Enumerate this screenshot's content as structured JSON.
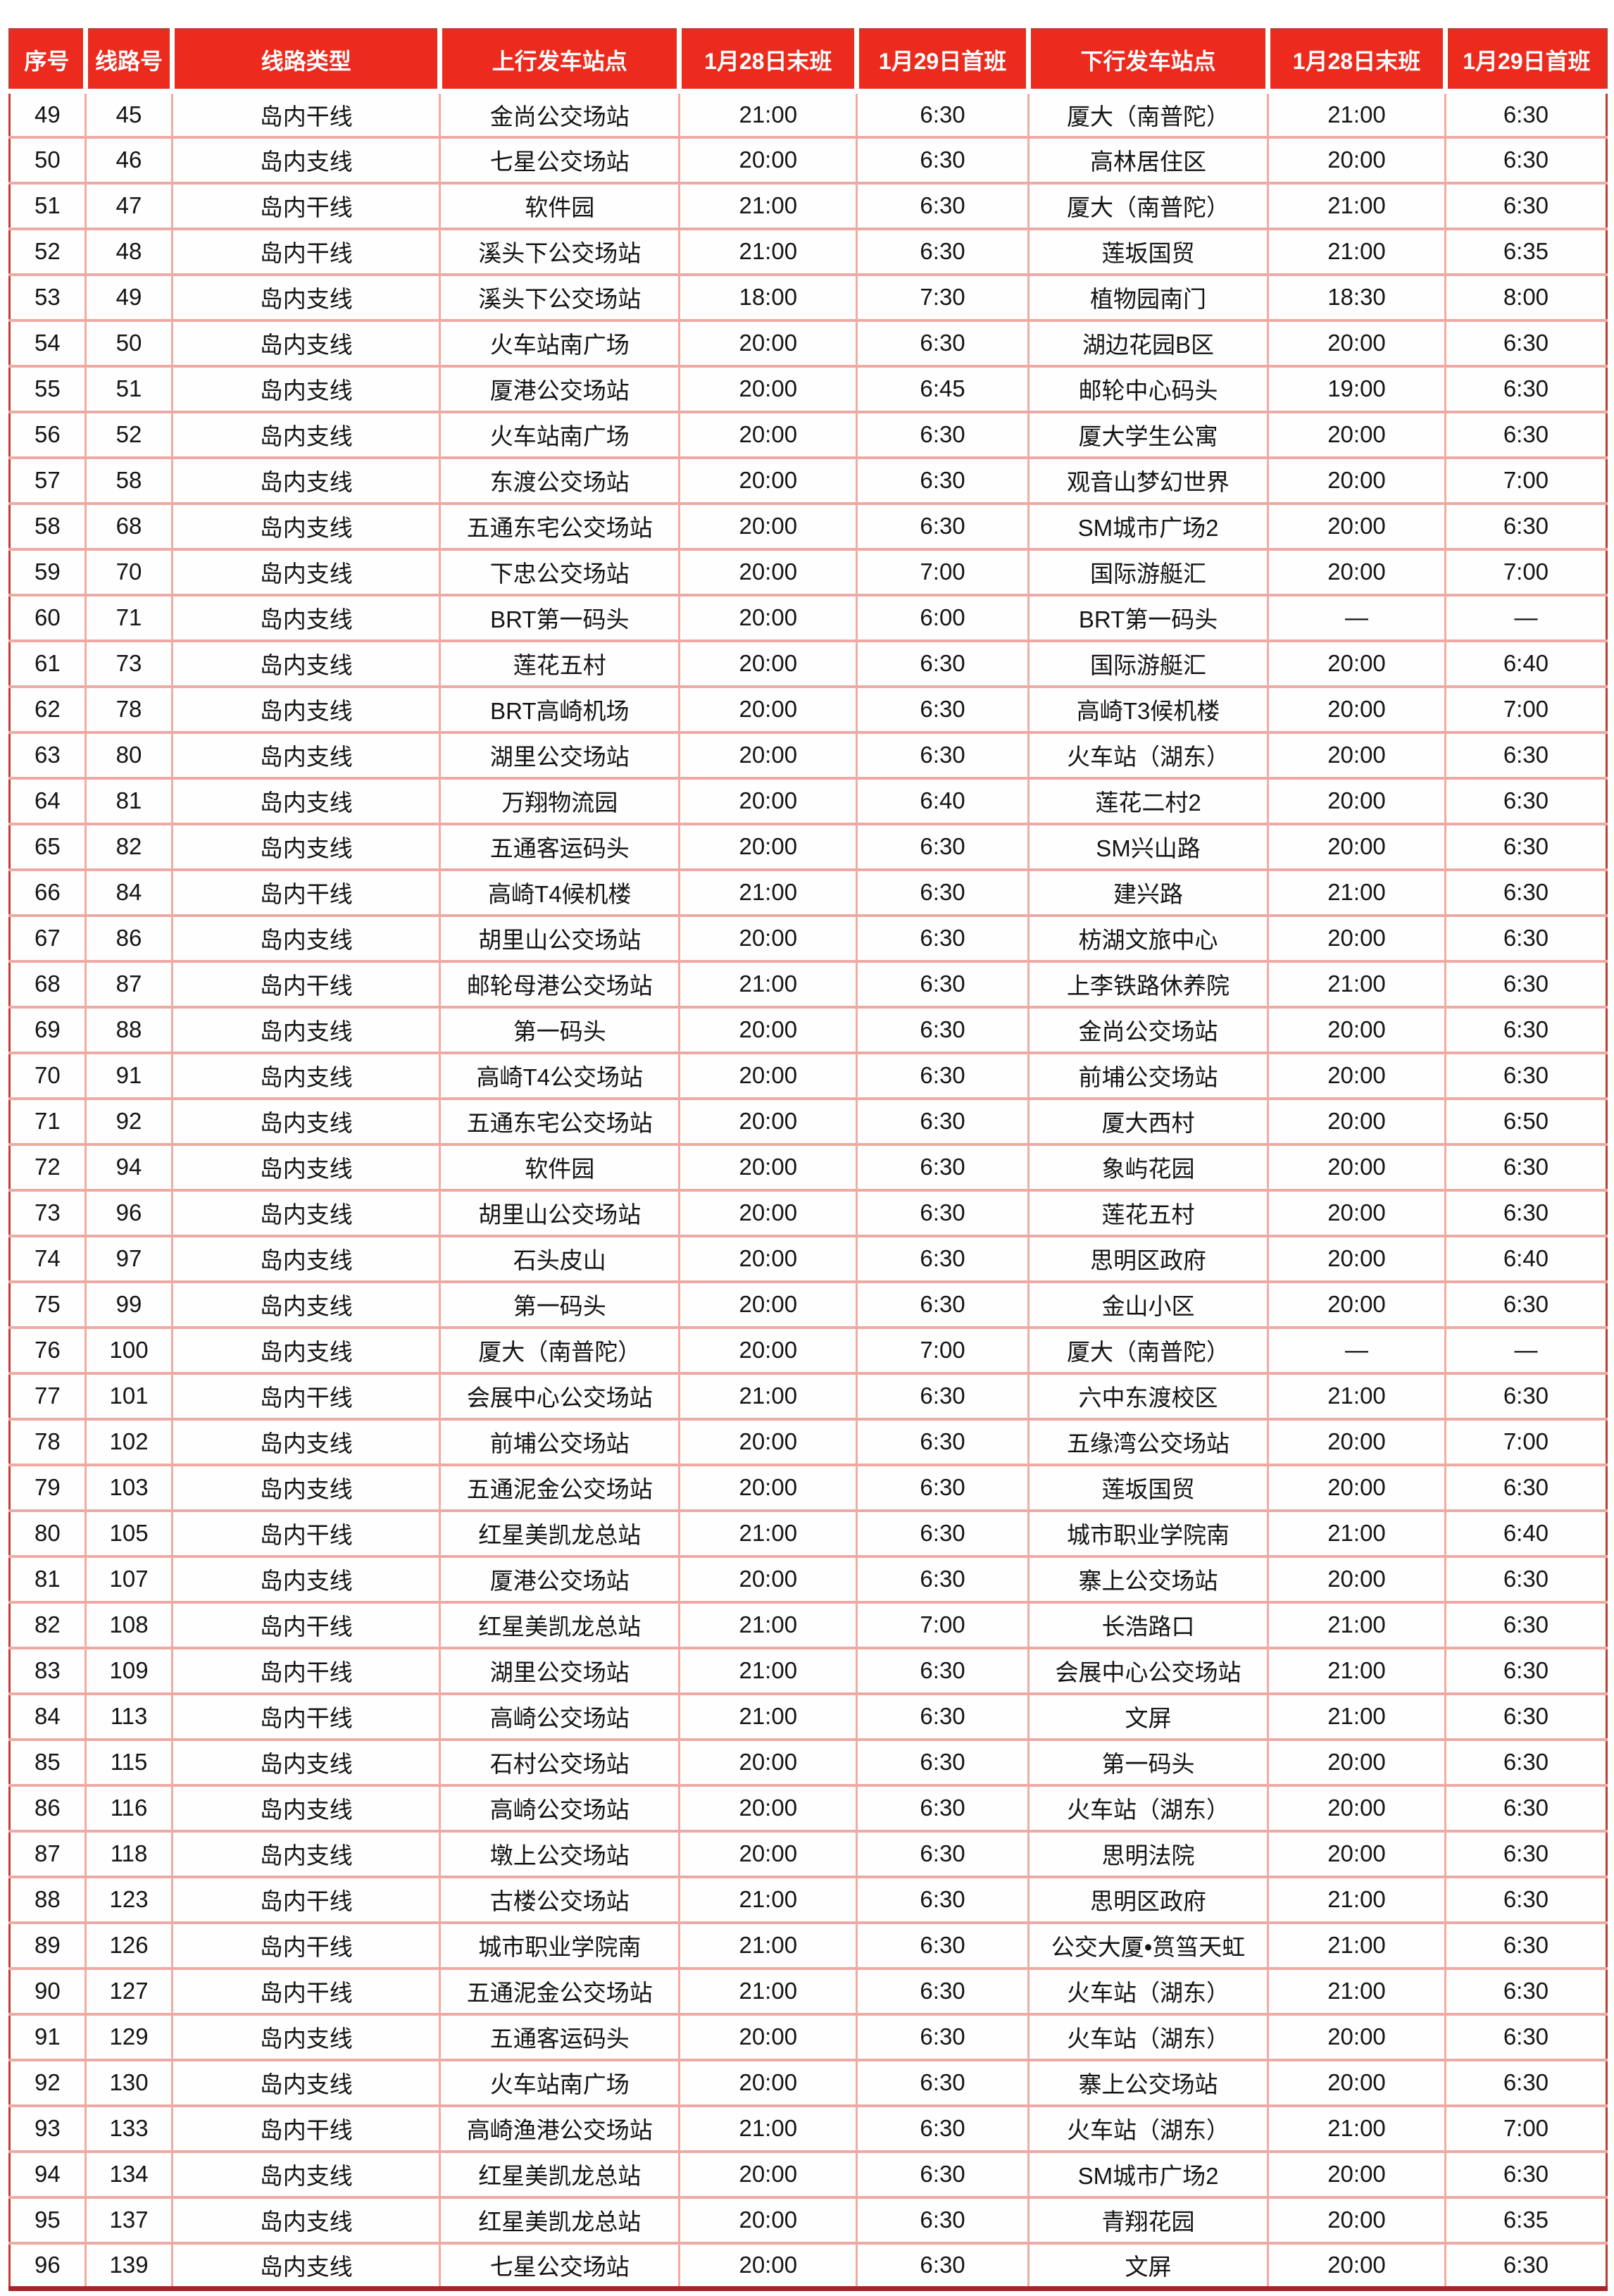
{
  "colors": {
    "header_bg": "#ec2b1e",
    "header_text": "#ffffff",
    "outer_border": "#c23b32",
    "bottom_border": "#a8242b",
    "inner_border": "#f0aba5",
    "body_text": "#141414"
  },
  "table": {
    "columns": [
      "序号",
      "线路号",
      "线路类型",
      "上行发车站点",
      "1月28日末班",
      "1月29日首班",
      "下行发车站点",
      "1月28日末班",
      "1月29日首班"
    ],
    "rows": [
      [
        "49",
        "45",
        "岛内干线",
        "金尚公交场站",
        "21:00",
        "6:30",
        "厦大（南普陀）",
        "21:00",
        "6:30"
      ],
      [
        "50",
        "46",
        "岛内支线",
        "七星公交场站",
        "20:00",
        "6:30",
        "高林居住区",
        "20:00",
        "6:30"
      ],
      [
        "51",
        "47",
        "岛内干线",
        "软件园",
        "21:00",
        "6:30",
        "厦大（南普陀）",
        "21:00",
        "6:30"
      ],
      [
        "52",
        "48",
        "岛内干线",
        "溪头下公交场站",
        "21:00",
        "6:30",
        "莲坂国贸",
        "21:00",
        "6:35"
      ],
      [
        "53",
        "49",
        "岛内支线",
        "溪头下公交场站",
        "18:00",
        "7:30",
        "植物园南门",
        "18:30",
        "8:00"
      ],
      [
        "54",
        "50",
        "岛内支线",
        "火车站南广场",
        "20:00",
        "6:30",
        "湖边花园B区",
        "20:00",
        "6:30"
      ],
      [
        "55",
        "51",
        "岛内支线",
        "厦港公交场站",
        "20:00",
        "6:45",
        "邮轮中心码头",
        "19:00",
        "6:30"
      ],
      [
        "56",
        "52",
        "岛内支线",
        "火车站南广场",
        "20:00",
        "6:30",
        "厦大学生公寓",
        "20:00",
        "6:30"
      ],
      [
        "57",
        "58",
        "岛内支线",
        "东渡公交场站",
        "20:00",
        "6:30",
        "观音山梦幻世界",
        "20:00",
        "7:00"
      ],
      [
        "58",
        "68",
        "岛内支线",
        "五通东宅公交场站",
        "20:00",
        "6:30",
        "SM城市广场2",
        "20:00",
        "6:30"
      ],
      [
        "59",
        "70",
        "岛内支线",
        "下忠公交场站",
        "20:00",
        "7:00",
        "国际游艇汇",
        "20:00",
        "7:00"
      ],
      [
        "60",
        "71",
        "岛内支线",
        "BRT第一码头",
        "20:00",
        "6:00",
        "BRT第一码头",
        "—",
        "—"
      ],
      [
        "61",
        "73",
        "岛内支线",
        "莲花五村",
        "20:00",
        "6:30",
        "国际游艇汇",
        "20:00",
        "6:40"
      ],
      [
        "62",
        "78",
        "岛内支线",
        "BRT高崎机场",
        "20:00",
        "6:30",
        "高崎T3候机楼",
        "20:00",
        "7:00"
      ],
      [
        "63",
        "80",
        "岛内支线",
        "湖里公交场站",
        "20:00",
        "6:30",
        "火车站（湖东）",
        "20:00",
        "6:30"
      ],
      [
        "64",
        "81",
        "岛内支线",
        "万翔物流园",
        "20:00",
        "6:40",
        "莲花二村2",
        "20:00",
        "6:30"
      ],
      [
        "65",
        "82",
        "岛内支线",
        "五通客运码头",
        "20:00",
        "6:30",
        "SM兴山路",
        "20:00",
        "6:30"
      ],
      [
        "66",
        "84",
        "岛内干线",
        "高崎T4候机楼",
        "21:00",
        "6:30",
        "建兴路",
        "21:00",
        "6:30"
      ],
      [
        "67",
        "86",
        "岛内支线",
        "胡里山公交场站",
        "20:00",
        "6:30",
        "枋湖文旅中心",
        "20:00",
        "6:30"
      ],
      [
        "68",
        "87",
        "岛内干线",
        "邮轮母港公交场站",
        "21:00",
        "6:30",
        "上李铁路休养院",
        "21:00",
        "6:30"
      ],
      [
        "69",
        "88",
        "岛内支线",
        "第一码头",
        "20:00",
        "6:30",
        "金尚公交场站",
        "20:00",
        "6:30"
      ],
      [
        "70",
        "91",
        "岛内支线",
        "高崎T4公交场站",
        "20:00",
        "6:30",
        "前埔公交场站",
        "20:00",
        "6:30"
      ],
      [
        "71",
        "92",
        "岛内支线",
        "五通东宅公交场站",
        "20:00",
        "6:30",
        "厦大西村",
        "20:00",
        "6:50"
      ],
      [
        "72",
        "94",
        "岛内支线",
        "软件园",
        "20:00",
        "6:30",
        "象屿花园",
        "20:00",
        "6:30"
      ],
      [
        "73",
        "96",
        "岛内支线",
        "胡里山公交场站",
        "20:00",
        "6:30",
        "莲花五村",
        "20:00",
        "6:30"
      ],
      [
        "74",
        "97",
        "岛内支线",
        "石头皮山",
        "20:00",
        "6:30",
        "思明区政府",
        "20:00",
        "6:40"
      ],
      [
        "75",
        "99",
        "岛内支线",
        "第一码头",
        "20:00",
        "6:30",
        "金山小区",
        "20:00",
        "6:30"
      ],
      [
        "76",
        "100",
        "岛内支线",
        "厦大（南普陀）",
        "20:00",
        "7:00",
        "厦大（南普陀）",
        "—",
        "—"
      ],
      [
        "77",
        "101",
        "岛内干线",
        "会展中心公交场站",
        "21:00",
        "6:30",
        "六中东渡校区",
        "21:00",
        "6:30"
      ],
      [
        "78",
        "102",
        "岛内支线",
        "前埔公交场站",
        "20:00",
        "6:30",
        "五缘湾公交场站",
        "20:00",
        "7:00"
      ],
      [
        "79",
        "103",
        "岛内支线",
        "五通泥金公交场站",
        "20:00",
        "6:30",
        "莲坂国贸",
        "20:00",
        "6:30"
      ],
      [
        "80",
        "105",
        "岛内干线",
        "红星美凯龙总站",
        "21:00",
        "6:30",
        "城市职业学院南",
        "21:00",
        "6:40"
      ],
      [
        "81",
        "107",
        "岛内支线",
        "厦港公交场站",
        "20:00",
        "6:30",
        "寨上公交场站",
        "20:00",
        "6:30"
      ],
      [
        "82",
        "108",
        "岛内干线",
        "红星美凯龙总站",
        "21:00",
        "7:00",
        "长浩路口",
        "21:00",
        "6:30"
      ],
      [
        "83",
        "109",
        "岛内干线",
        "湖里公交场站",
        "21:00",
        "6:30",
        "会展中心公交场站",
        "21:00",
        "6:30"
      ],
      [
        "84",
        "113",
        "岛内干线",
        "高崎公交场站",
        "21:00",
        "6:30",
        "文屏",
        "21:00",
        "6:30"
      ],
      [
        "85",
        "115",
        "岛内支线",
        "石村公交场站",
        "20:00",
        "6:30",
        "第一码头",
        "20:00",
        "6:30"
      ],
      [
        "86",
        "116",
        "岛内支线",
        "高崎公交场站",
        "20:00",
        "6:30",
        "火车站（湖东）",
        "20:00",
        "6:30"
      ],
      [
        "87",
        "118",
        "岛内支线",
        "墩上公交场站",
        "20:00",
        "6:30",
        "思明法院",
        "20:00",
        "6:30"
      ],
      [
        "88",
        "123",
        "岛内干线",
        "古楼公交场站",
        "21:00",
        "6:30",
        "思明区政府",
        "21:00",
        "6:30"
      ],
      [
        "89",
        "126",
        "岛内干线",
        "城市职业学院南",
        "21:00",
        "6:30",
        "公交大厦•筼筜天虹",
        "21:00",
        "6:30"
      ],
      [
        "90",
        "127",
        "岛内干线",
        "五通泥金公交场站",
        "21:00",
        "6:30",
        "火车站（湖东）",
        "21:00",
        "6:30"
      ],
      [
        "91",
        "129",
        "岛内支线",
        "五通客运码头",
        "20:00",
        "6:30",
        "火车站（湖东）",
        "20:00",
        "6:30"
      ],
      [
        "92",
        "130",
        "岛内支线",
        "火车站南广场",
        "20:00",
        "6:30",
        "寨上公交场站",
        "20:00",
        "6:30"
      ],
      [
        "93",
        "133",
        "岛内干线",
        "高崎渔港公交场站",
        "21:00",
        "6:30",
        "火车站（湖东）",
        "21:00",
        "7:00"
      ],
      [
        "94",
        "134",
        "岛内支线",
        "红星美凯龙总站",
        "20:00",
        "6:30",
        "SM城市广场2",
        "20:00",
        "6:30"
      ],
      [
        "95",
        "137",
        "岛内支线",
        "红星美凯龙总站",
        "20:00",
        "6:30",
        "青翔花园",
        "20:00",
        "6:35"
      ],
      [
        "96",
        "139",
        "岛内支线",
        "七星公交场站",
        "20:00",
        "6:30",
        "文屏",
        "20:00",
        "6:30"
      ]
    ]
  }
}
